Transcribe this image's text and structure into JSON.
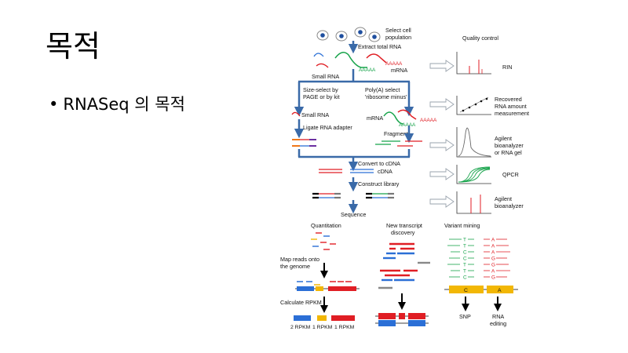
{
  "slide": {
    "title": "목적",
    "bullet": "RNASeq 의 목적"
  },
  "figure": {
    "top_steps": {
      "select_cell_population": [
        "Select cell",
        "population"
      ],
      "extract_total_rna": "Extract total RNA",
      "small_rna": "Small RNA",
      "mrna": "mRNA",
      "aaaaa": "AAAAA",
      "size_select": [
        "Size-select by",
        "PAGE or by kit"
      ],
      "polya_select": [
        "Poly(A) select",
        "'ribosome minus'"
      ],
      "small_rna_2": "Small RNA",
      "mrna_2": "mRNA",
      "ligate_adapter": "Ligate RNA adapter",
      "fragment": "Fragment",
      "convert_to_cdna": "Convert to cDNA",
      "cdna": "cDNA",
      "construct_library": "Construct library",
      "sequence": "Sequence"
    },
    "qc": {
      "title": "Quality control",
      "rin": "RIN",
      "recovered": [
        "Recovered",
        "RNA amount",
        "measurement"
      ],
      "agilent_gel": [
        "Agilent",
        "bioanalyzer",
        "or RNA gel"
      ],
      "qpcr": "QPCR",
      "agilent": [
        "Agilent",
        "bioanalyzer"
      ]
    },
    "bottom": {
      "quantitation": "Quantitation",
      "new_transcript": [
        "New transcript",
        "discovery"
      ],
      "variant_mining": "Variant mining",
      "map_reads": [
        "Map reads onto",
        "the genome"
      ],
      "calculate_rpkm": "Calculate RPKM",
      "rpkm_labels": [
        "2 RPKM",
        "1 RPKM",
        "1 RPKM"
      ],
      "snp": "SNP",
      "rna_editing": [
        "RNA",
        "editing"
      ],
      "green_bases": [
        "T",
        "T",
        "C",
        "C",
        "T",
        "T",
        "C"
      ],
      "red_bases": [
        "A",
        "A",
        "A",
        "G",
        "G",
        "A",
        "G"
      ],
      "box_c": "C",
      "box_a": "A"
    }
  },
  "colors": {
    "red": "#e01e24",
    "green": "#16a34a",
    "blue": "#1f6fbf",
    "navy": "#3a6aa8",
    "yellow": "#f2b705",
    "grey": "#808080",
    "purple": "#6b2fa1",
    "orange": "#f07818"
  }
}
